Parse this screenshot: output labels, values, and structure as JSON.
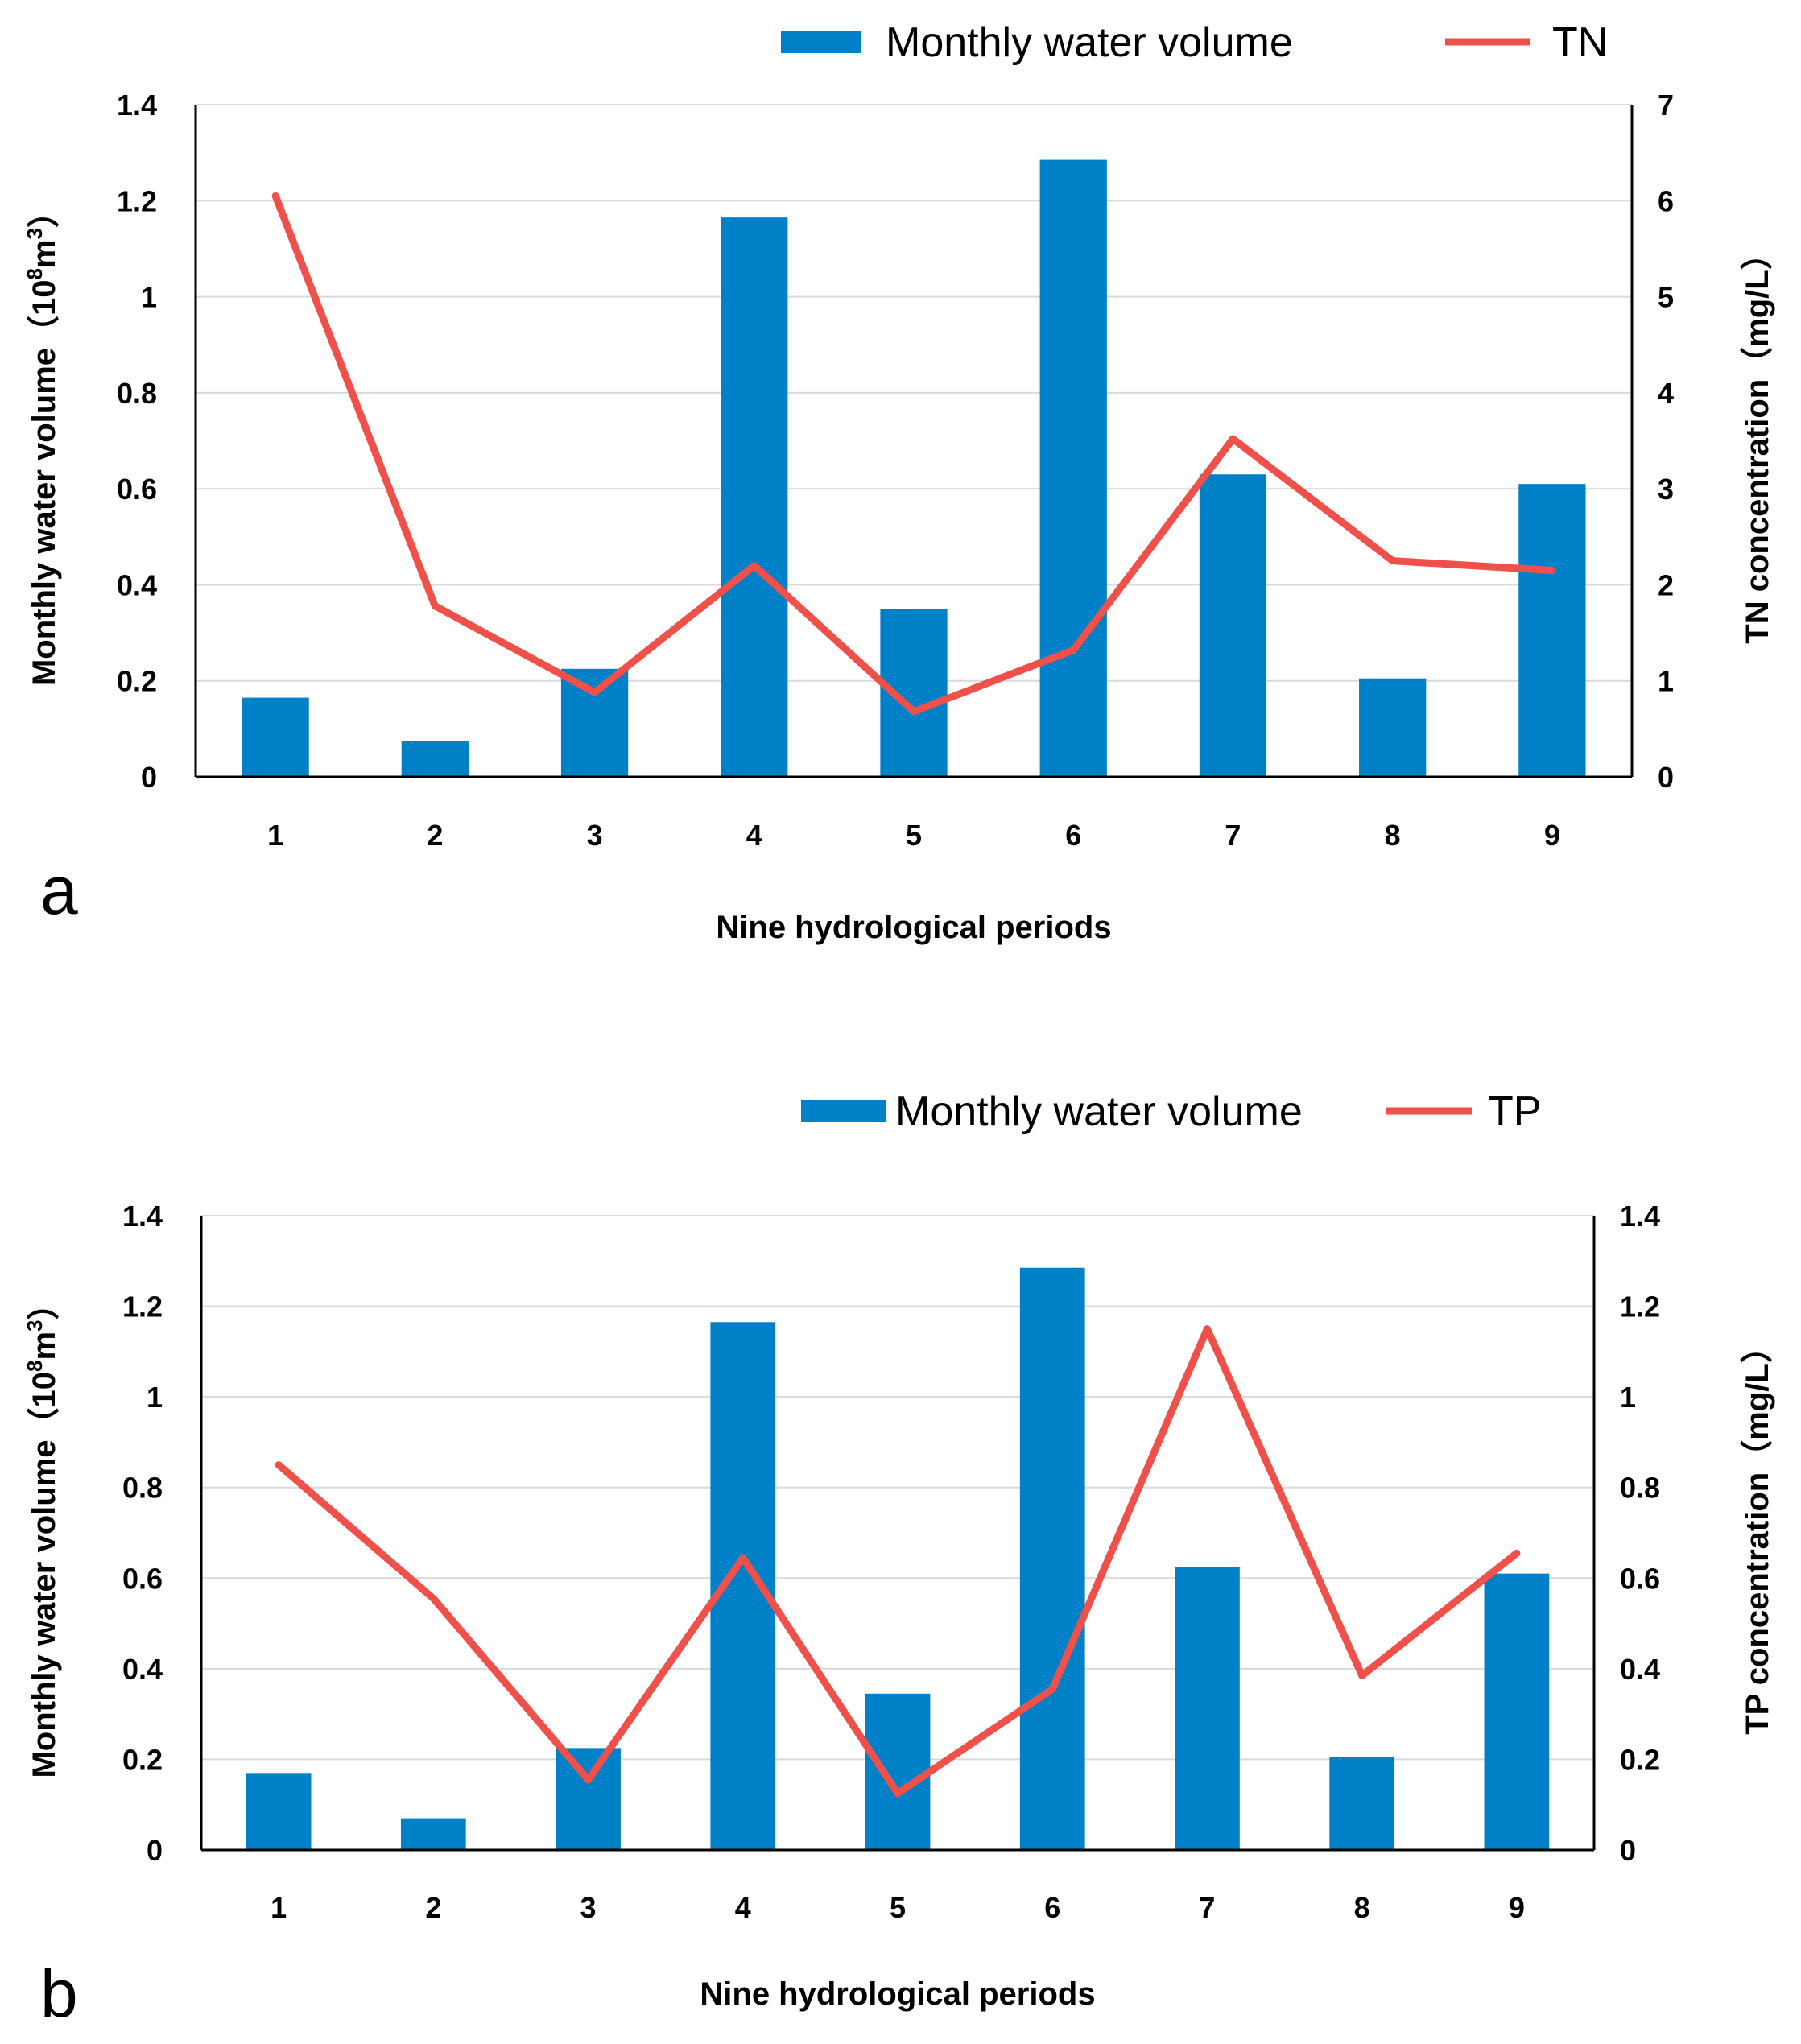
{
  "chart_data": [
    {
      "panel_label": "a",
      "type": "bar+line",
      "categories": [
        "1",
        "2",
        "3",
        "4",
        "5",
        "6",
        "7",
        "8",
        "9"
      ],
      "series": [
        {
          "name": "Monthly water volume",
          "type": "bar",
          "axis": "left",
          "color": "#0080C6",
          "values": [
            0.165,
            0.075,
            0.225,
            1.165,
            0.35,
            1.285,
            0.63,
            0.205,
            0.61
          ]
        },
        {
          "name": "TN",
          "type": "line",
          "axis": "right",
          "color": "#F0504A",
          "values": [
            6.05,
            1.78,
            0.88,
            2.2,
            0.68,
            1.32,
            3.52,
            2.25,
            2.15
          ]
        }
      ],
      "legend": [
        {
          "label": "Monthly water volume",
          "symbol": "bar"
        },
        {
          "label": "TN",
          "symbol": "line"
        }
      ],
      "xlabel": "Nine hydrological periods",
      "ylabel_left": {
        "main": "Monthly water volume（",
        "base": "10",
        "sup1": "8",
        "unit": "m",
        "sup2": "3",
        "close": "）"
      },
      "ylabel_right": "TN concentration（mg/L）",
      "ylim_left": [
        0,
        1.4
      ],
      "ylim_right": [
        0,
        7
      ],
      "yticks_left": [
        "0",
        "0.2",
        "0.4",
        "0.6",
        "0.8",
        "1",
        "1.2",
        "1.4"
      ],
      "yticks_right": [
        "0",
        "1",
        "2",
        "3",
        "4",
        "5",
        "6",
        "7"
      ],
      "grid": true,
      "legend_position": "top-right"
    },
    {
      "panel_label": "b",
      "type": "bar+line",
      "categories": [
        "1",
        "2",
        "3",
        "4",
        "5",
        "6",
        "7",
        "8",
        "9"
      ],
      "series": [
        {
          "name": "Monthly water volume",
          "type": "bar",
          "axis": "left",
          "color": "#0080C6",
          "values": [
            0.17,
            0.07,
            0.225,
            1.165,
            0.345,
            1.285,
            0.625,
            0.205,
            0.61
          ]
        },
        {
          "name": "TP",
          "type": "line",
          "axis": "right",
          "color": "#F0504A",
          "values": [
            0.85,
            0.555,
            0.155,
            0.645,
            0.125,
            0.355,
            1.15,
            0.385,
            0.655
          ]
        }
      ],
      "legend": [
        {
          "label": "Monthly water volume",
          "symbol": "bar"
        },
        {
          "label": "TP",
          "symbol": "line"
        }
      ],
      "xlabel": "Nine hydrological periods",
      "ylabel_left": {
        "main": "Monthly water volume（",
        "base": "10",
        "sup1": "8",
        "unit": "m",
        "sup2": "3",
        "close": "）"
      },
      "ylabel_right": "TP concentration（mg/L）",
      "ylim_left": [
        0,
        1.4
      ],
      "ylim_right": [
        0,
        1.4
      ],
      "yticks_left": [
        "0",
        "0.2",
        "0.4",
        "0.6",
        "0.8",
        "1",
        "1.2",
        "1.4"
      ],
      "yticks_right": [
        "0",
        "0.2",
        "0.4",
        "0.6",
        "0.8",
        "1",
        "1.2",
        "1.4"
      ],
      "grid": true,
      "legend_position": "top-right"
    }
  ]
}
